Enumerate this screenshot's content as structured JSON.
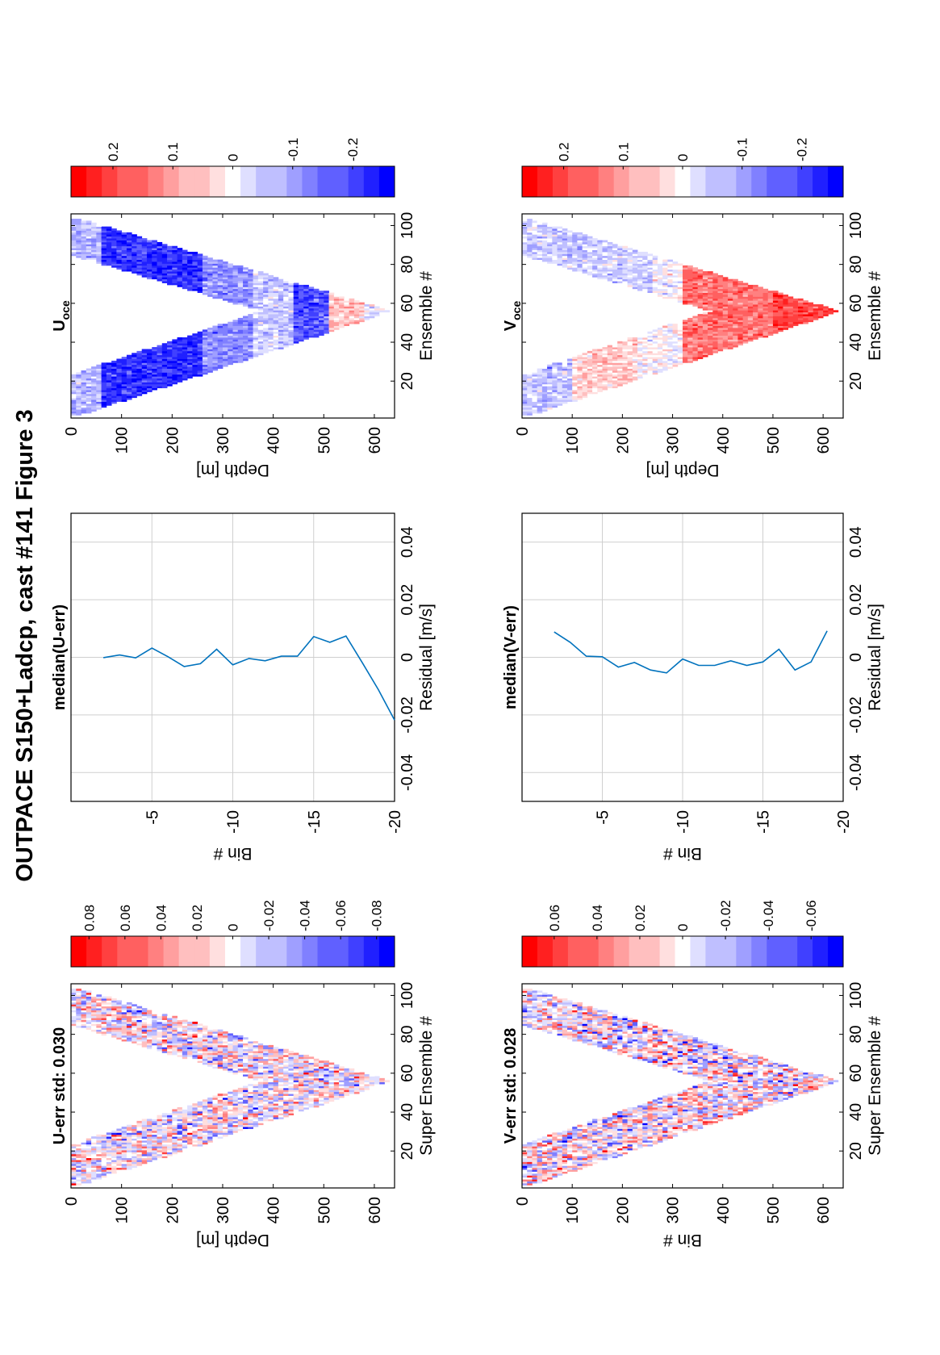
{
  "figure_title": "OUTPACE S150+Ladcp, cast #141  Figure 3",
  "chart_data": [
    {
      "id": "u_err",
      "type": "heatmap",
      "title": "U-err std: 0.030",
      "xlabel": "Super Ensemble #",
      "ylabel": "Depth [m]",
      "xlim": [
        1,
        106
      ],
      "ylim": [
        0,
        640
      ],
      "xticks": [
        20,
        40,
        60,
        80,
        100
      ],
      "yticks": [
        0,
        100,
        200,
        300,
        400,
        500,
        600
      ],
      "clim": [
        -0.09,
        0.09
      ],
      "colorbar_ticks": [
        0.08,
        0.06,
        0.04,
        0.02,
        0,
        -0.02,
        -0.04,
        -0.06,
        -0.08
      ],
      "pattern": "noise",
      "std": 0.03,
      "bottom_depth": 630,
      "turn_ensemble": 56,
      "colors": {
        "positive": "#ff0000",
        "negative": "#0000ff",
        "zero": "#ffffff"
      }
    },
    {
      "id": "median_u",
      "type": "line",
      "title": "median(U-err)",
      "xlabel": "Residual [m/s]",
      "ylabel": "Bin #",
      "xlim": [
        -0.05,
        0.05
      ],
      "ylim": [
        -20,
        0
      ],
      "xticks": [
        -0.04,
        -0.02,
        0,
        0.02,
        0.04
      ],
      "yticks": [
        -5,
        -10,
        -15,
        -20
      ],
      "series": [
        {
          "x": [
            -0.0001,
            0.0008,
            -0.0002,
            0.0032,
            0.0002,
            -0.0032,
            -0.0022,
            0.0028,
            -0.0026,
            -0.0004,
            -0.0012,
            0.0004,
            0.0004,
            0.0072,
            0.0052,
            0.0074,
            -0.0018,
            -0.0112,
            -0.0218
          ],
          "y": [
            -2,
            -3,
            -4,
            -5,
            -6,
            -7,
            -8,
            -9,
            -10,
            -11,
            -12,
            -13,
            -14,
            -15,
            -16,
            -17,
            -18,
            -19,
            -20
          ]
        }
      ],
      "color": "#0072bd"
    },
    {
      "id": "u_oce",
      "type": "heatmap",
      "title": "U",
      "title_subscript": "oce",
      "xlabel": "Ensemble #",
      "ylabel": "Depth [m]",
      "xlim": [
        1,
        106
      ],
      "ylim": [
        0,
        640
      ],
      "xticks": [
        20,
        40,
        60,
        80,
        100
      ],
      "yticks": [
        0,
        100,
        200,
        300,
        400,
        500,
        600
      ],
      "clim": [
        -0.27,
        0.27
      ],
      "colorbar_ticks": [
        0.2,
        0.1,
        0,
        -0.1,
        -0.2
      ],
      "pattern": "u_profile",
      "bottom_depth": 630,
      "turn_ensemble": 56,
      "colors": {
        "positive": "#ff0000",
        "negative": "#0000ff",
        "zero": "#ffffff"
      }
    },
    {
      "id": "v_err",
      "type": "heatmap",
      "title": "V-err std: 0.028",
      "xlabel": "Super Ensemble #",
      "ylabel": "Bin #",
      "xlim": [
        1,
        106
      ],
      "ylim": [
        0,
        640
      ],
      "xticks": [
        20,
        40,
        60,
        80,
        100
      ],
      "yticks": [
        0,
        100,
        200,
        300,
        400,
        500,
        600
      ],
      "clim": [
        -0.075,
        0.075
      ],
      "colorbar_ticks": [
        0.06,
        0.04,
        0.02,
        0,
        -0.02,
        -0.04,
        -0.06
      ],
      "pattern": "noise",
      "std": 0.028,
      "bottom_depth": 630,
      "turn_ensemble": 56,
      "colors": {
        "positive": "#ff0000",
        "negative": "#0000ff",
        "zero": "#ffffff"
      }
    },
    {
      "id": "median_v",
      "type": "line",
      "title": "median(V-err)",
      "xlabel": "Residual [m/s]",
      "ylabel": "Bin #",
      "xlim": [
        -0.05,
        0.05
      ],
      "ylim": [
        -20,
        0
      ],
      "xticks": [
        -0.04,
        -0.02,
        0,
        0.02,
        0.04
      ],
      "yticks": [
        -5,
        -10,
        -15,
        -20
      ],
      "series": [
        {
          "x": [
            0.0088,
            0.0052,
            0.0004,
            0.0002,
            -0.0034,
            -0.0018,
            -0.0044,
            -0.0054,
            -0.0006,
            -0.0028,
            -0.0028,
            -0.0012,
            -0.0028,
            -0.0016,
            0.0028,
            -0.0044,
            -0.0016,
            0.0092
          ],
          "y": [
            -2,
            -3,
            -4,
            -5,
            -6,
            -7,
            -8,
            -9,
            -10,
            -11,
            -12,
            -13,
            -14,
            -15,
            -16,
            -17,
            -18,
            -19
          ]
        }
      ],
      "color": "#0072bd"
    },
    {
      "id": "v_oce",
      "type": "heatmap",
      "title": "V",
      "title_subscript": "oce",
      "xlabel": "Ensemble #",
      "ylabel": "Depth [m]",
      "xlim": [
        1,
        106
      ],
      "ylim": [
        0,
        640
      ],
      "xticks": [
        20,
        40,
        60,
        80,
        100
      ],
      "yticks": [
        0,
        100,
        200,
        300,
        400,
        500,
        600
      ],
      "clim": [
        -0.27,
        0.27
      ],
      "colorbar_ticks": [
        0.2,
        0.1,
        0,
        -0.1,
        -0.2
      ],
      "pattern": "v_profile",
      "bottom_depth": 630,
      "turn_ensemble": 56,
      "colors": {
        "positive": "#ff0000",
        "negative": "#0000ff",
        "zero": "#ffffff"
      }
    }
  ]
}
